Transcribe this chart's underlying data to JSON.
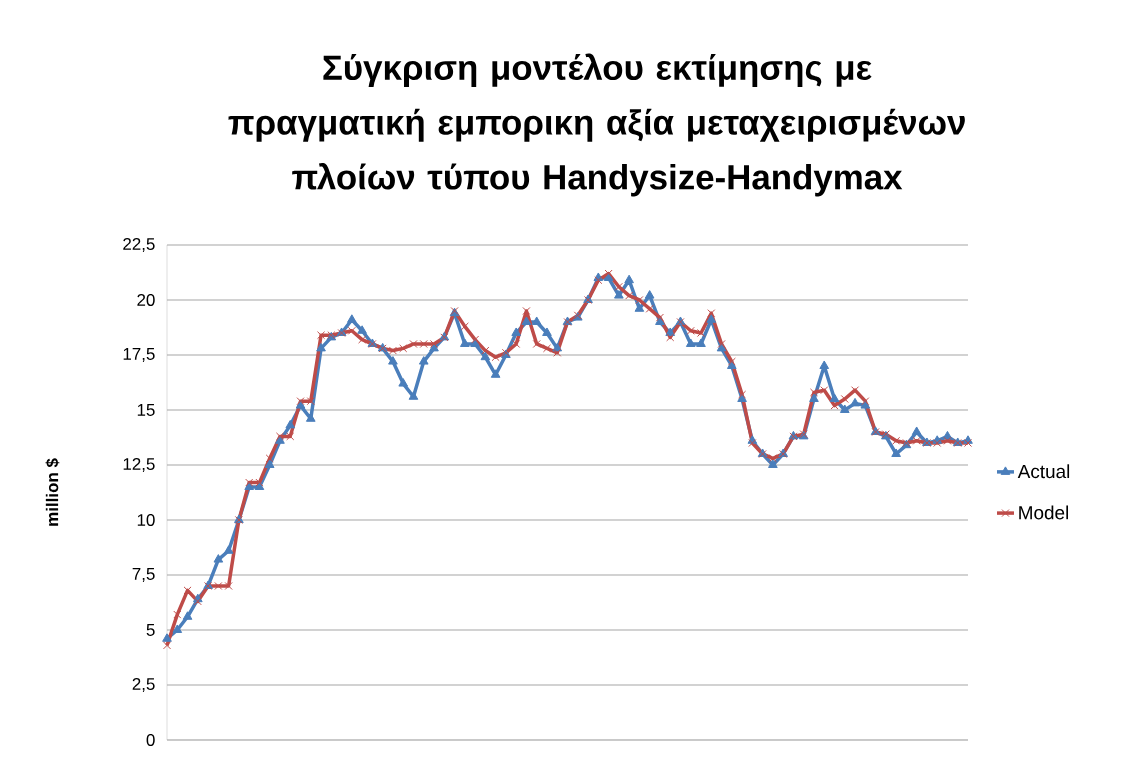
{
  "chart_data": {
    "type": "line",
    "title": "Σύγκριση μοντέλου εκτίμησης  με πραγματική εμπορικη αξία μεταχειρισμένων πλοίων τύπου Handysize-Handymax",
    "ylabel": "million $",
    "categories": [
      null,
      null,
      null,
      null,
      null,
      null,
      null,
      null,
      null,
      null,
      null,
      null,
      null,
      null,
      null,
      null,
      null,
      null,
      null,
      null,
      null,
      null,
      null,
      null,
      null,
      null,
      null,
      null,
      null,
      null,
      null,
      null,
      null,
      null,
      null,
      null,
      null,
      null,
      null,
      null,
      null,
      null,
      null,
      null,
      null,
      null,
      null,
      null,
      null,
      null,
      null,
      null,
      null,
      null,
      null,
      null,
      null,
      null,
      null,
      null,
      null,
      null,
      null,
      null,
      null,
      null,
      null,
      null,
      null,
      null,
      null,
      null,
      null,
      null,
      null,
      null,
      null,
      null,
      null
    ],
    "series": [
      {
        "name": "Actual",
        "color": "#4a7ebb",
        "marker": "triangle",
        "values": [
          4.6,
          5.0,
          5.6,
          6.4,
          7.0,
          8.2,
          8.6,
          10.0,
          11.5,
          11.5,
          12.5,
          13.6,
          14.3,
          15.2,
          14.6,
          17.8,
          18.3,
          18.5,
          19.1,
          18.6,
          18.0,
          17.8,
          17.2,
          16.2,
          15.6,
          17.2,
          17.8,
          18.3,
          19.4,
          18.0,
          18.0,
          17.4,
          16.6,
          17.5,
          18.5,
          19.0,
          19.0,
          18.5,
          17.8,
          19.0,
          19.2,
          20.0,
          21.0,
          21.0,
          20.2,
          20.9,
          19.6,
          20.2,
          19.0,
          18.5,
          19.0,
          18.0,
          18.0,
          19.1,
          17.8,
          17.0,
          15.5,
          13.6,
          13.0,
          12.5,
          13.0,
          13.8,
          13.8,
          15.5,
          17.0,
          15.5,
          15.0,
          15.3,
          15.2,
          14.0,
          13.8,
          13.0,
          13.4,
          14.0,
          13.5,
          13.6,
          13.8,
          13.5,
          13.6
        ]
      },
      {
        "name": "Model",
        "color": "#be4b48",
        "marker": "cross",
        "values": [
          4.3,
          5.7,
          6.8,
          6.3,
          7.0,
          7.0,
          7.0,
          10.0,
          11.7,
          11.7,
          12.8,
          13.8,
          13.8,
          15.4,
          15.4,
          18.4,
          18.4,
          18.5,
          18.6,
          18.2,
          18.0,
          17.8,
          17.7,
          17.8,
          18.0,
          18.0,
          18.0,
          18.3,
          19.5,
          18.8,
          18.2,
          17.7,
          17.4,
          17.6,
          18.0,
          19.5,
          18.0,
          17.8,
          17.6,
          19.0,
          19.3,
          20.0,
          20.9,
          21.2,
          20.6,
          20.2,
          20.0,
          19.6,
          19.2,
          18.3,
          19.0,
          18.6,
          18.5,
          19.4,
          18.0,
          17.2,
          15.7,
          13.5,
          13.0,
          12.8,
          13.0,
          13.8,
          13.9,
          15.8,
          15.9,
          15.2,
          15.5,
          15.9,
          15.4,
          14.0,
          13.9,
          13.6,
          13.5,
          13.6,
          13.5,
          13.5,
          13.6,
          13.5,
          13.5
        ]
      }
    ],
    "ylim": [
      0,
      22.5
    ],
    "yticks": [
      0,
      {
        "value": 2.5,
        "label": "2,5"
      },
      5,
      {
        "value": 7.5,
        "label": "7,5"
      },
      10,
      {
        "value": 12.5,
        "label": "12,5"
      },
      15,
      {
        "value": 17.5,
        "label": "17,5"
      },
      20,
      {
        "value": 22.5,
        "label": "22,5"
      }
    ],
    "grid": "y",
    "legend": "right",
    "line_style": "solid"
  }
}
